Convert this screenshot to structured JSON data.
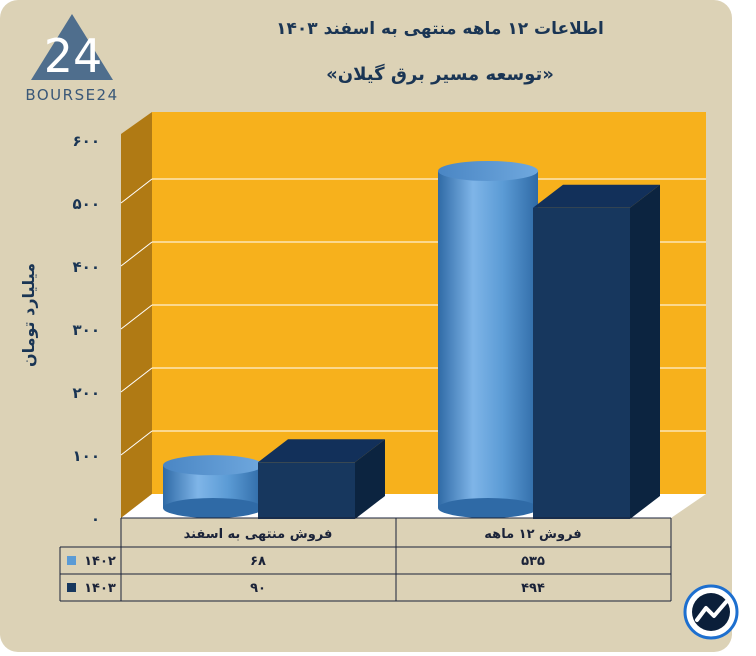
{
  "logo": {
    "number": "24",
    "wordmark": "BOURSE24"
  },
  "chart_data": {
    "type": "bar",
    "title": "اطلاعات ۱۲ ماهه منتهی به اسفند ۱۴۰۳",
    "subtitle": "«توسعه مسیر برق گیلان»",
    "ylabel": "میلیارد تومان",
    "ylim": [
      0,
      600
    ],
    "yticks": [
      {
        "value": 0,
        "label": "۰"
      },
      {
        "value": 100,
        "label": "۱۰۰"
      },
      {
        "value": 200,
        "label": "۲۰۰"
      },
      {
        "value": 300,
        "label": "۳۰۰"
      },
      {
        "value": 400,
        "label": "۴۰۰"
      },
      {
        "value": 500,
        "label": "۵۰۰"
      },
      {
        "value": 600,
        "label": "۶۰۰"
      }
    ],
    "categories": [
      "فروش منتهی به اسفند",
      "فروش ۱۲ ماهه"
    ],
    "series": [
      {
        "name": "۱۴۰۲",
        "color": "#5b9bd5",
        "values": [
          68,
          535
        ],
        "labels": [
          "۶۸",
          "۵۳۵"
        ],
        "shape": "cylinder"
      },
      {
        "name": "۱۴۰۳",
        "color": "#17375e",
        "values": [
          90,
          494
        ],
        "labels": [
          "۹۰",
          "۴۹۴"
        ],
        "shape": "box"
      }
    ],
    "grid": true,
    "legend": "table-left",
    "colors": {
      "plot_back": "#f7b11c",
      "plot_side": "#b07a14",
      "floor": "#ffffff"
    }
  }
}
